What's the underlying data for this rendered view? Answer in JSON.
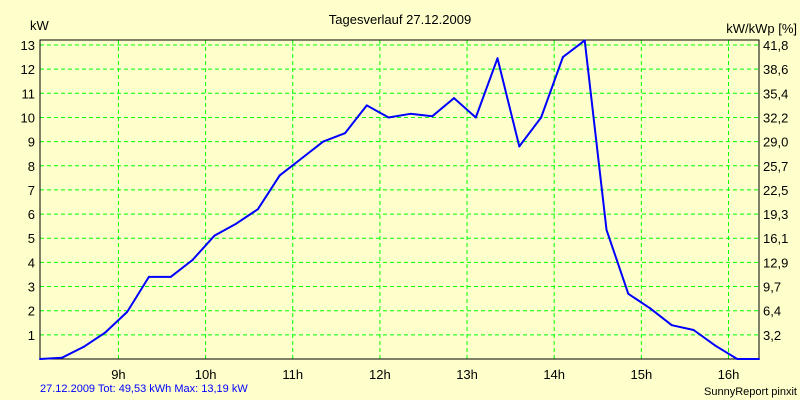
{
  "chart_data": {
    "type": "line",
    "title": "Tagesverlauf 27.12.2009",
    "ylabel": "kW",
    "ylabel_right": "kW/kWp [%]",
    "xlim": [
      8.1,
      16.35
    ],
    "ylim": [
      0,
      13
    ],
    "grid": true,
    "x_ticks": [
      9,
      10,
      11,
      12,
      13,
      14,
      15,
      16
    ],
    "x_tick_labels": [
      "9h",
      "10h",
      "11h",
      "12h",
      "13h",
      "14h",
      "15h",
      "16h"
    ],
    "y_ticks": [
      1,
      2,
      3,
      4,
      5,
      6,
      7,
      8,
      9,
      10,
      11,
      12,
      13
    ],
    "y_tick_labels": [
      "1",
      "2",
      "3",
      "4",
      "5",
      "6",
      "7",
      "8",
      "9",
      "10",
      "11",
      "12",
      "13"
    ],
    "y_right_tick_labels": [
      "3,2",
      "6,4",
      "9,7",
      "12,9",
      "16,1",
      "19,3",
      "22,5",
      "25,7",
      "29,0",
      "32,2",
      "35,4",
      "38,6",
      "41,8"
    ],
    "series": [
      {
        "name": "kW",
        "color": "#0000ff",
        "x": [
          8.1,
          8.35,
          8.6,
          8.85,
          9.1,
          9.35,
          9.6,
          9.85,
          10.1,
          10.35,
          10.6,
          10.85,
          11.1,
          11.35,
          11.6,
          11.85,
          12.1,
          12.35,
          12.6,
          12.85,
          13.1,
          13.35,
          13.6,
          13.85,
          14.1,
          14.35,
          14.6,
          14.85,
          15.1,
          15.35,
          15.6,
          15.85,
          16.1,
          16.35
        ],
        "values": [
          0,
          0.05,
          0.5,
          1.1,
          1.95,
          3.4,
          3.4,
          4.1,
          5.1,
          5.6,
          6.2,
          7.6,
          8.3,
          9.0,
          9.35,
          10.5,
          10.0,
          10.15,
          10.05,
          10.8,
          10.0,
          12.45,
          8.8,
          10.0,
          12.5,
          13.19,
          5.35,
          2.7,
          2.1,
          1.4,
          1.2,
          0.55,
          0,
          0
        ]
      }
    ]
  },
  "footer": {
    "summary": "27.12.2009 Tot: 49,53 kWh Max: 13,19 kW",
    "credit": "SunnyReport pinxit"
  },
  "colors": {
    "background": "#ffffcc",
    "grid": "#00ff00",
    "line": "#0000ff",
    "summary_text": "#0000ff"
  }
}
